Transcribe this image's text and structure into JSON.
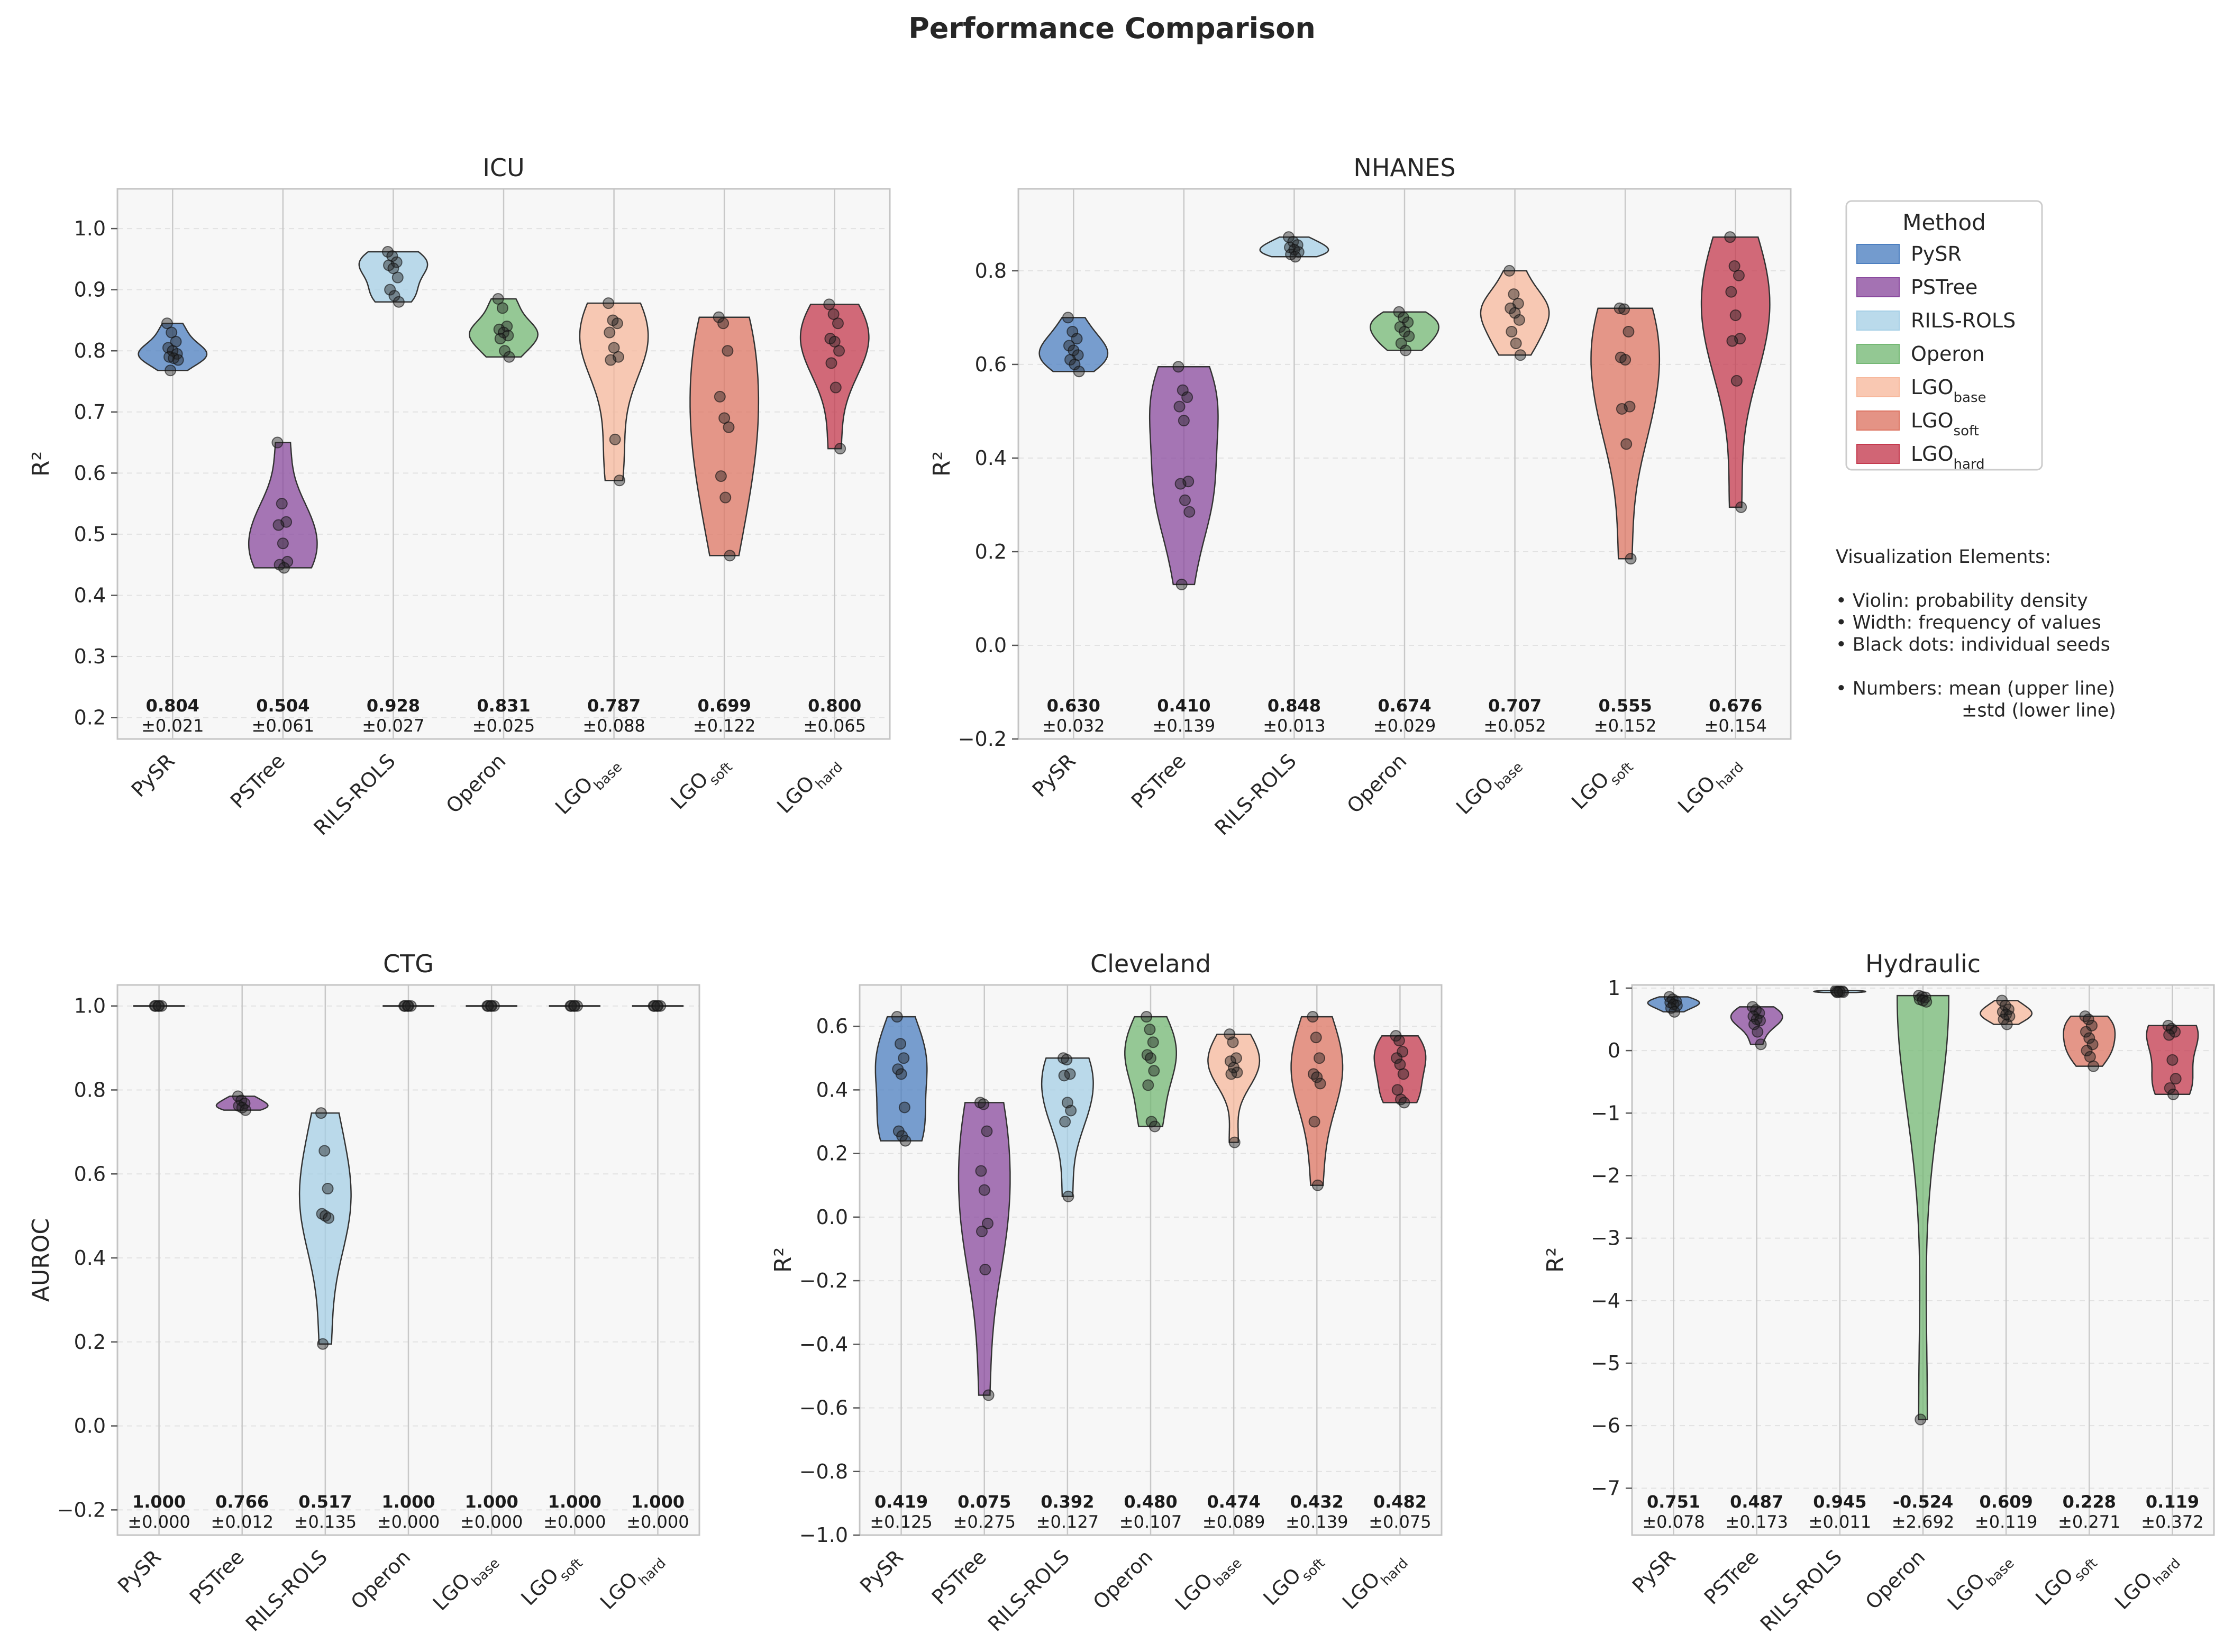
{
  "title": "Performance Comparison",
  "methods": [
    {
      "key": "pysr",
      "label": "PySR",
      "sub": "",
      "color": "#4c7fc0"
    },
    {
      "key": "pstree",
      "label": "PSTree",
      "sub": "",
      "color": "#8a4a9e"
    },
    {
      "key": "rils",
      "label": "RILS-ROLS",
      "sub": "",
      "color": "#a6cfe6"
    },
    {
      "key": "operon",
      "label": "Operon",
      "sub": "",
      "color": "#74b874"
    },
    {
      "key": "lgobase",
      "label": "LGO",
      "sub": "base",
      "color": "#f7b89c"
    },
    {
      "key": "lgosoft",
      "label": "LGO",
      "sub": "soft",
      "color": "#dd7563"
    },
    {
      "key": "lgohard",
      "label": "LGO",
      "sub": "hard",
      "color": "#c43a4e"
    }
  ],
  "legend": {
    "title": "Method",
    "items": [
      {
        "label": "PySR",
        "sub": "",
        "color": "#4c7fc0"
      },
      {
        "label": "PSTree",
        "sub": "",
        "color": "#8a4a9e"
      },
      {
        "label": "RILS-ROLS",
        "sub": "",
        "color": "#a6cfe6"
      },
      {
        "label": "Operon",
        "sub": "",
        "color": "#74b874"
      },
      {
        "label": "LGO",
        "sub": "base",
        "color": "#f7b89c"
      },
      {
        "label": "LGO",
        "sub": "soft",
        "color": "#dd7563"
      },
      {
        "label": "LGO",
        "sub": "hard",
        "color": "#c43a4e"
      }
    ]
  },
  "notes": [
    "Visualization Elements:",
    "",
    "• Violin: probability density",
    "• Width: frequency of values",
    "• Black dots: individual seeds",
    "",
    "• Numbers: mean (upper line)",
    "±std (lower line)"
  ],
  "chart_data": [
    {
      "type": "violin",
      "title": "ICU",
      "ylabel": "R²",
      "ylim": [
        0.165,
        1.065
      ],
      "yticks": [
        0.2,
        0.3,
        0.4,
        0.5,
        0.6,
        0.7,
        0.8,
        0.9,
        1.0
      ],
      "grid": true,
      "series": [
        {
          "method": "pysr",
          "mean": "0.804",
          "std": "±0.021",
          "points": [
            0.845,
            0.83,
            0.815,
            0.805,
            0.8,
            0.795,
            0.79,
            0.788,
            0.785,
            0.768
          ]
        },
        {
          "method": "pstree",
          "mean": "0.504",
          "std": "±0.061",
          "points": [
            0.65,
            0.55,
            0.52,
            0.515,
            0.485,
            0.455,
            0.45,
            0.445
          ]
        },
        {
          "method": "rils",
          "mean": "0.928",
          "std": "±0.027",
          "points": [
            0.962,
            0.955,
            0.945,
            0.94,
            0.935,
            0.92,
            0.9,
            0.89,
            0.88
          ]
        },
        {
          "method": "operon",
          "mean": "0.831",
          "std": "±0.025",
          "points": [
            0.885,
            0.87,
            0.84,
            0.835,
            0.83,
            0.825,
            0.82,
            0.8,
            0.79
          ]
        },
        {
          "method": "lgobase",
          "mean": "0.787",
          "std": "±0.088",
          "points": [
            0.878,
            0.85,
            0.845,
            0.83,
            0.805,
            0.79,
            0.785,
            0.655,
            0.588
          ]
        },
        {
          "method": "lgosoft",
          "mean": "0.699",
          "std": "±0.122",
          "points": [
            0.855,
            0.845,
            0.8,
            0.725,
            0.69,
            0.675,
            0.595,
            0.56,
            0.465
          ]
        },
        {
          "method": "lgohard",
          "mean": "0.800",
          "std": "±0.065",
          "points": [
            0.876,
            0.86,
            0.845,
            0.82,
            0.815,
            0.8,
            0.78,
            0.74,
            0.64
          ]
        }
      ]
    },
    {
      "type": "violin",
      "title": "NHANES",
      "ylabel": "R²",
      "ylim": [
        -0.2,
        0.975
      ],
      "yticks": [
        -0.2,
        0.0,
        0.2,
        0.4,
        0.6,
        0.8
      ],
      "grid": true,
      "series": [
        {
          "method": "pysr",
          "mean": "0.630",
          "std": "±0.032",
          "points": [
            0.7,
            0.67,
            0.655,
            0.64,
            0.63,
            0.62,
            0.61,
            0.6,
            0.585
          ]
        },
        {
          "method": "pstree",
          "mean": "0.410",
          "std": "±0.139",
          "points": [
            0.595,
            0.545,
            0.53,
            0.51,
            0.48,
            0.35,
            0.345,
            0.31,
            0.285,
            0.13
          ]
        },
        {
          "method": "rils",
          "mean": "0.848",
          "std": "±0.013",
          "points": [
            0.872,
            0.862,
            0.855,
            0.85,
            0.845,
            0.84,
            0.835,
            0.83
          ]
        },
        {
          "method": "operon",
          "mean": "0.674",
          "std": "±0.029",
          "points": [
            0.712,
            0.7,
            0.69,
            0.68,
            0.67,
            0.66,
            0.645,
            0.63
          ]
        },
        {
          "method": "lgobase",
          "mean": "0.707",
          "std": "±0.052",
          "points": [
            0.8,
            0.75,
            0.73,
            0.72,
            0.71,
            0.695,
            0.67,
            0.645,
            0.62
          ]
        },
        {
          "method": "lgosoft",
          "mean": "0.555",
          "std": "±0.152",
          "points": [
            0.72,
            0.718,
            0.67,
            0.615,
            0.61,
            0.51,
            0.505,
            0.43,
            0.185
          ]
        },
        {
          "method": "lgohard",
          "mean": "0.676",
          "std": "±0.154",
          "points": [
            0.872,
            0.81,
            0.79,
            0.755,
            0.705,
            0.655,
            0.65,
            0.565,
            0.295
          ]
        }
      ]
    },
    {
      "type": "violin",
      "title": "CTG",
      "ylabel": "AUROC",
      "ylim": [
        -0.26,
        1.05
      ],
      "yticks": [
        -0.2,
        0.0,
        0.2,
        0.4,
        0.6,
        0.8,
        1.0
      ],
      "grid": true,
      "series": [
        {
          "method": "pysr",
          "mean": "1.000",
          "std": "±0.000",
          "points": [
            1.0,
            1.0,
            1.0,
            1.0,
            1.0
          ]
        },
        {
          "method": "pstree",
          "mean": "0.766",
          "std": "±0.012",
          "points": [
            0.785,
            0.775,
            0.768,
            0.762,
            0.758,
            0.752
          ]
        },
        {
          "method": "rils",
          "mean": "0.517",
          "std": "±0.135",
          "points": [
            0.745,
            0.655,
            0.565,
            0.505,
            0.5,
            0.495,
            0.195
          ]
        },
        {
          "method": "operon",
          "mean": "1.000",
          "std": "±0.000",
          "points": [
            1.0,
            1.0,
            1.0,
            1.0,
            1.0
          ]
        },
        {
          "method": "lgobase",
          "mean": "1.000",
          "std": "±0.000",
          "points": [
            1.0,
            1.0,
            1.0,
            1.0,
            1.0
          ]
        },
        {
          "method": "lgosoft",
          "mean": "1.000",
          "std": "±0.000",
          "points": [
            1.0,
            1.0,
            1.0,
            1.0,
            1.0
          ]
        },
        {
          "method": "lgohard",
          "mean": "1.000",
          "std": "±0.000",
          "points": [
            1.0,
            1.0,
            1.0,
            1.0,
            1.0
          ]
        }
      ]
    },
    {
      "type": "violin",
      "title": "Cleveland",
      "ylabel": "R²",
      "ylim": [
        -1.0,
        0.73
      ],
      "yticks": [
        -1.0,
        -0.8,
        -0.6,
        -0.4,
        -0.2,
        0.0,
        0.2,
        0.4,
        0.6
      ],
      "grid": true,
      "series": [
        {
          "method": "pysr",
          "mean": "0.419",
          "std": "±0.125",
          "points": [
            0.63,
            0.545,
            0.5,
            0.465,
            0.45,
            0.345,
            0.27,
            0.255,
            0.24
          ]
        },
        {
          "method": "pstree",
          "mean": "0.075",
          "std": "±0.275",
          "points": [
            0.36,
            0.355,
            0.27,
            0.145,
            0.085,
            -0.02,
            -0.045,
            -0.165,
            -0.56
          ]
        },
        {
          "method": "rils",
          "mean": "0.392",
          "std": "±0.127",
          "points": [
            0.5,
            0.495,
            0.45,
            0.445,
            0.36,
            0.335,
            0.3,
            0.065
          ]
        },
        {
          "method": "operon",
          "mean": "0.480",
          "std": "±0.107",
          "points": [
            0.63,
            0.59,
            0.55,
            0.51,
            0.5,
            0.46,
            0.415,
            0.3,
            0.285
          ]
        },
        {
          "method": "lgobase",
          "mean": "0.474",
          "std": "±0.089",
          "points": [
            0.575,
            0.55,
            0.5,
            0.49,
            0.47,
            0.455,
            0.45,
            0.235
          ]
        },
        {
          "method": "lgosoft",
          "mean": "0.432",
          "std": "±0.139",
          "points": [
            0.63,
            0.565,
            0.5,
            0.45,
            0.44,
            0.42,
            0.3,
            0.1
          ]
        },
        {
          "method": "lgohard",
          "mean": "0.482",
          "std": "±0.075",
          "points": [
            0.57,
            0.555,
            0.52,
            0.5,
            0.48,
            0.45,
            0.4,
            0.37,
            0.36
          ]
        }
      ]
    },
    {
      "type": "violin",
      "title": "Hydraulic",
      "ylabel": "R²",
      "ylim": [
        -7.75,
        1.05
      ],
      "yticks": [
        -7,
        -6,
        -5,
        -4,
        -3,
        -2,
        -1,
        0,
        1
      ],
      "grid": true,
      "series": [
        {
          "method": "pysr",
          "mean": "0.751",
          "std": "±0.078",
          "points": [
            0.86,
            0.82,
            0.79,
            0.77,
            0.74,
            0.72,
            0.68,
            0.62
          ]
        },
        {
          "method": "pstree",
          "mean": "0.487",
          "std": "±0.173",
          "points": [
            0.7,
            0.65,
            0.6,
            0.55,
            0.5,
            0.48,
            0.42,
            0.3,
            0.1
          ]
        },
        {
          "method": "rils",
          "mean": "0.945",
          "std": "±0.011",
          "points": [
            0.96,
            0.955,
            0.95,
            0.945,
            0.94,
            0.935,
            0.93
          ]
        },
        {
          "method": "operon",
          "mean": "-0.524",
          "std": "±2.692",
          "points": [
            0.88,
            0.86,
            0.85,
            0.82,
            0.8,
            0.78,
            -5.9
          ]
        },
        {
          "method": "lgobase",
          "mean": "0.609",
          "std": "±0.119",
          "points": [
            0.8,
            0.72,
            0.66,
            0.62,
            0.58,
            0.55,
            0.5,
            0.42
          ]
        },
        {
          "method": "lgosoft",
          "mean": "0.228",
          "std": "±0.271",
          "points": [
            0.55,
            0.5,
            0.4,
            0.3,
            0.2,
            0.1,
            0.0,
            -0.1,
            -0.25
          ]
        },
        {
          "method": "lgohard",
          "mean": "0.119",
          "std": "±0.372",
          "points": [
            0.4,
            0.35,
            0.3,
            0.25,
            -0.15,
            -0.45,
            -0.6,
            -0.7
          ]
        }
      ]
    }
  ]
}
